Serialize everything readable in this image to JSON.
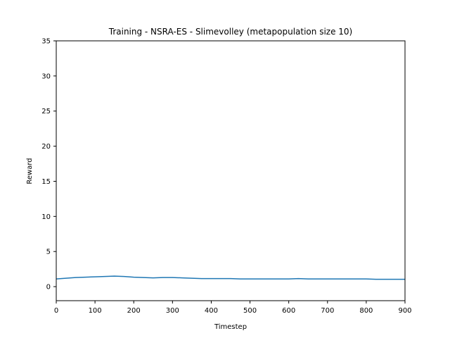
{
  "chart_data": {
    "type": "line",
    "title": "Training - NSRA-ES - Slimevolley (metapopulation size 10)",
    "xlabel": "Timestep",
    "ylabel": "Reward",
    "xlim": [
      0,
      900
    ],
    "ylim": [
      -2,
      35
    ],
    "xticks": [
      "0",
      "100",
      "200",
      "300",
      "400",
      "500",
      "600",
      "700",
      "800",
      "900"
    ],
    "yticks": [
      "0",
      "5",
      "10",
      "15",
      "20",
      "25",
      "30",
      "35"
    ],
    "grid": false,
    "legend": "none",
    "series": [
      {
        "color": "#1f77b4",
        "x": [
          0,
          25,
          50,
          75,
          100,
          125,
          150,
          175,
          200,
          225,
          250,
          275,
          300,
          325,
          350,
          375,
          400,
          425,
          450,
          475,
          500,
          525,
          550,
          575,
          600,
          625,
          650,
          675,
          700,
          725,
          750,
          775,
          800,
          825,
          850,
          875,
          900
        ],
        "y": [
          1.1,
          1.2,
          1.3,
          1.35,
          1.4,
          1.45,
          1.5,
          1.45,
          1.35,
          1.3,
          1.25,
          1.3,
          1.3,
          1.25,
          1.2,
          1.15,
          1.15,
          1.15,
          1.15,
          1.1,
          1.1,
          1.1,
          1.1,
          1.1,
          1.1,
          1.15,
          1.1,
          1.1,
          1.1,
          1.1,
          1.1,
          1.1,
          1.1,
          1.05,
          1.05,
          1.05,
          1.05
        ]
      }
    ]
  }
}
